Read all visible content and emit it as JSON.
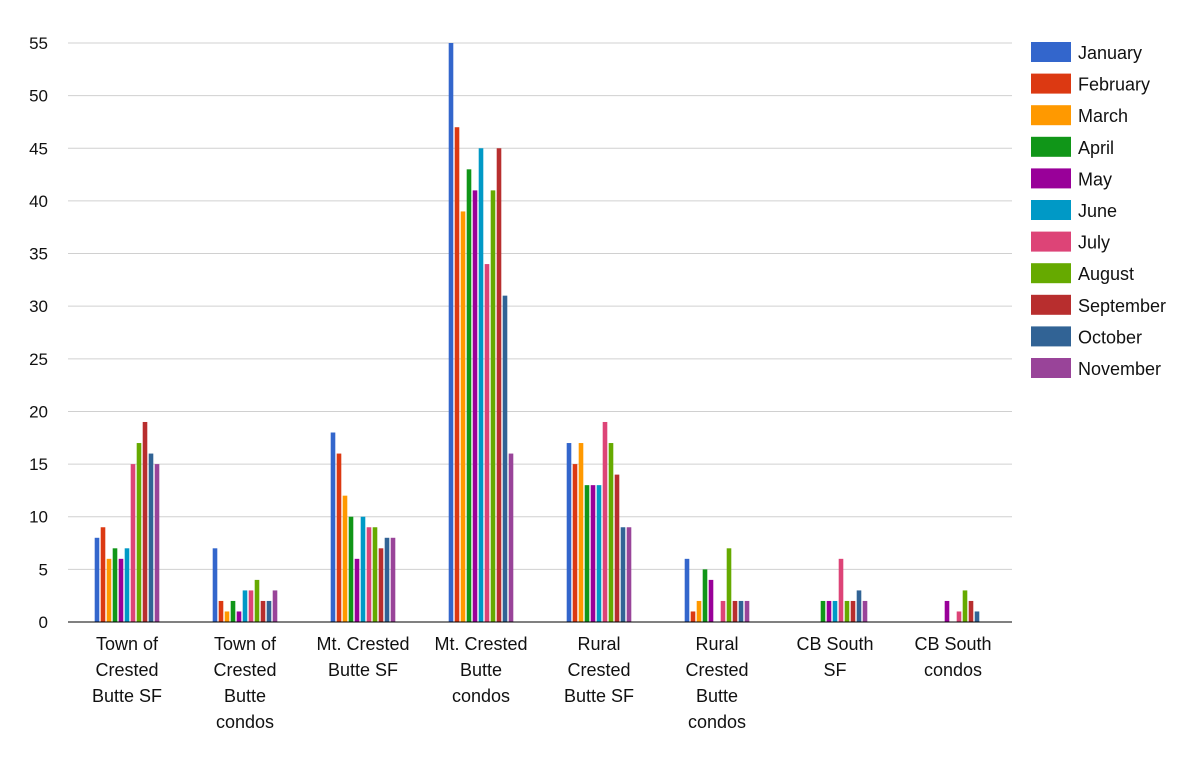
{
  "chart_data": {
    "type": "bar",
    "title": "",
    "xlabel": "",
    "ylabel": "",
    "ylim": [
      0,
      55
    ],
    "yticks": [
      0,
      5,
      10,
      15,
      20,
      25,
      30,
      35,
      40,
      45,
      50,
      55
    ],
    "grid": true,
    "legend_position": "right",
    "categories": [
      [
        "Town of",
        "Crested",
        "Butte SF"
      ],
      [
        "Town of",
        "Crested",
        "Butte",
        "condos"
      ],
      [
        "Mt. Crested",
        "Butte SF"
      ],
      [
        "Mt. Crested",
        "Butte",
        "condos"
      ],
      [
        "Rural",
        "Crested",
        "Butte SF"
      ],
      [
        "Rural",
        "Crested",
        "Butte",
        "condos"
      ],
      [
        "CB South",
        "SF"
      ],
      [
        "CB South",
        "condos"
      ]
    ],
    "series": [
      {
        "name": "January",
        "color": "#3366cc",
        "values": [
          8,
          7,
          18,
          55,
          17,
          6,
          0,
          0
        ]
      },
      {
        "name": "February",
        "color": "#dc3912",
        "values": [
          9,
          2,
          16,
          47,
          15,
          1,
          0,
          0
        ]
      },
      {
        "name": "March",
        "color": "#ff9900",
        "values": [
          6,
          1,
          12,
          39,
          17,
          2,
          0,
          0
        ]
      },
      {
        "name": "April",
        "color": "#109618",
        "values": [
          7,
          2,
          10,
          43,
          13,
          5,
          2,
          0
        ]
      },
      {
        "name": "May",
        "color": "#990099",
        "values": [
          6,
          1,
          6,
          41,
          13,
          4,
          2,
          2
        ]
      },
      {
        "name": "June",
        "color": "#0099c6",
        "values": [
          7,
          3,
          10,
          45,
          13,
          0,
          2,
          0
        ]
      },
      {
        "name": "July",
        "color": "#dd4477",
        "values": [
          15,
          3,
          9,
          34,
          19,
          2,
          6,
          1
        ]
      },
      {
        "name": "August",
        "color": "#66aa00",
        "values": [
          17,
          4,
          9,
          41,
          17,
          7,
          2,
          3
        ]
      },
      {
        "name": "September",
        "color": "#b82e2e",
        "values": [
          19,
          2,
          7,
          45,
          14,
          2,
          2,
          2
        ]
      },
      {
        "name": "October",
        "color": "#316395",
        "values": [
          16,
          2,
          8,
          31,
          9,
          2,
          3,
          1
        ]
      },
      {
        "name": "November",
        "color": "#994499",
        "values": [
          15,
          3,
          8,
          16,
          9,
          2,
          2,
          0
        ]
      }
    ]
  }
}
